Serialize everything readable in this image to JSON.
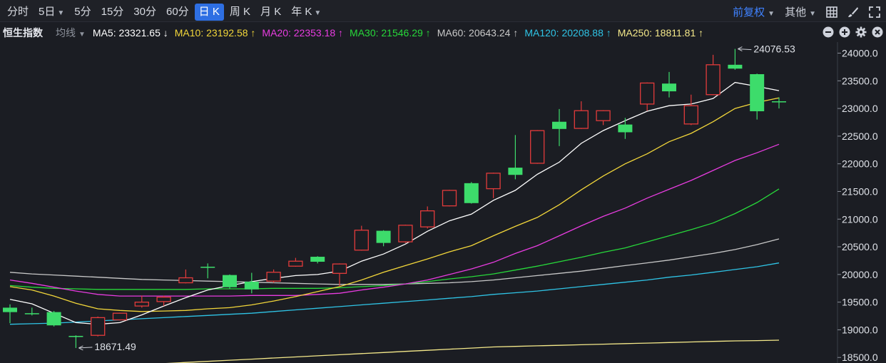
{
  "toolbar": {
    "tabs": [
      {
        "label": "分时",
        "caret": false,
        "active": false
      },
      {
        "label": "5日",
        "caret": true,
        "active": false
      },
      {
        "label": "5分",
        "caret": false,
        "active": false
      },
      {
        "label": "15分",
        "caret": false,
        "active": false
      },
      {
        "label": "30分",
        "caret": false,
        "active": false
      },
      {
        "label": "60分",
        "caret": false,
        "active": false
      },
      {
        "label": "日 K",
        "caret": false,
        "active": true
      },
      {
        "label": "周 K",
        "caret": false,
        "active": false
      },
      {
        "label": "月 K",
        "caret": false,
        "active": false
      },
      {
        "label": "年 K",
        "caret": true,
        "active": false
      }
    ],
    "adjust_label": "前复权",
    "other_label": "其他",
    "icons": [
      "grid-icon",
      "brush-icon",
      "expand-icon"
    ]
  },
  "ma_bar": {
    "title": "恒生指数",
    "selector": "均线",
    "items": [
      {
        "text": "MA5: 23321.65 ↓",
        "color": "#ffffff"
      },
      {
        "text": "MA10: 23192.58 ↑",
        "color": "#f2d63a"
      },
      {
        "text": "MA20: 22353.18 ↑",
        "color": "#e83ce0"
      },
      {
        "text": "MA30: 21546.29 ↑",
        "color": "#27d83a"
      },
      {
        "text": "MA60: 20643.24 ↑",
        "color": "#c8c8c8"
      },
      {
        "text": "MA120: 20208.88 ↑",
        "color": "#2fc4e6"
      },
      {
        "text": "MA250: 18811.81 ↑",
        "color": "#f5e98a"
      }
    ],
    "controls": [
      "minus-circle-icon",
      "plus-circle-icon",
      "gear-icon",
      "close-circle-icon"
    ]
  },
  "colors": {
    "up": "#e23b3b",
    "down": "#3ddc6b",
    "ma5": "#ffffff",
    "ma10": "#f2d63a",
    "ma20": "#e83ce0",
    "ma30": "#27d83a",
    "ma60": "#c8c8c8",
    "ma120": "#2fc4e6",
    "ma250": "#f5e98a"
  },
  "chart_data": {
    "type": "candlestick",
    "ylim": [
      18400,
      24200
    ],
    "ticks": [
      "24000.0",
      "23500.0",
      "23000.0",
      "22500.0",
      "22000.0",
      "21500.0",
      "21000.0",
      "20500.0",
      "20000.0",
      "19500.0",
      "19000.0",
      "18500.0"
    ],
    "tick_values": [
      24000,
      23500,
      23000,
      22500,
      22000,
      21500,
      21000,
      20500,
      20000,
      19500,
      19000,
      18500
    ],
    "candles": [
      {
        "o": 19400,
        "c": 19320,
        "h": 19460,
        "l": 19120
      },
      {
        "o": 19300,
        "c": 19295,
        "h": 19400,
        "l": 19260
      },
      {
        "o": 19320,
        "c": 19080,
        "h": 19340,
        "l": 19060
      },
      {
        "o": 18890,
        "c": 18870,
        "h": 18900,
        "l": 18671.49
      },
      {
        "o": 18900,
        "c": 19220,
        "h": 19240,
        "l": 18880
      },
      {
        "o": 19180,
        "c": 19300,
        "h": 19310,
        "l": 19170
      },
      {
        "o": 19430,
        "c": 19500,
        "h": 19620,
        "l": 19400
      },
      {
        "o": 19510,
        "c": 19590,
        "h": 19620,
        "l": 19430
      },
      {
        "o": 19850,
        "c": 19940,
        "h": 20090,
        "l": 19840
      },
      {
        "o": 20140,
        "c": 20130,
        "h": 20200,
        "l": 19930
      },
      {
        "o": 19990,
        "c": 19770,
        "h": 20000,
        "l": 19740
      },
      {
        "o": 19870,
        "c": 19730,
        "h": 20030,
        "l": 19660
      },
      {
        "o": 19880,
        "c": 20040,
        "h": 20090,
        "l": 19850
      },
      {
        "o": 20150,
        "c": 20240,
        "h": 20300,
        "l": 20140
      },
      {
        "o": 20320,
        "c": 20230,
        "h": 20330,
        "l": 20200
      },
      {
        "o": 20020,
        "c": 20190,
        "h": 20200,
        "l": 19790
      },
      {
        "o": 20440,
        "c": 20800,
        "h": 20880,
        "l": 20430
      },
      {
        "o": 20790,
        "c": 20570,
        "h": 20800,
        "l": 20510
      },
      {
        "o": 20590,
        "c": 20890,
        "h": 20900,
        "l": 20570
      },
      {
        "o": 20860,
        "c": 21150,
        "h": 21230,
        "l": 20830
      },
      {
        "o": 21240,
        "c": 21520,
        "h": 21530,
        "l": 21230
      },
      {
        "o": 21650,
        "c": 21290,
        "h": 21670,
        "l": 21280
      },
      {
        "o": 21550,
        "c": 21830,
        "h": 21840,
        "l": 21380
      },
      {
        "o": 21930,
        "c": 21800,
        "h": 22520,
        "l": 21720
      },
      {
        "o": 22010,
        "c": 22600,
        "h": 22610,
        "l": 22000
      },
      {
        "o": 22760,
        "c": 22630,
        "h": 22990,
        "l": 22320
      },
      {
        "o": 22640,
        "c": 22960,
        "h": 23130,
        "l": 22630
      },
      {
        "o": 22780,
        "c": 22960,
        "h": 22970,
        "l": 22700
      },
      {
        "o": 22710,
        "c": 22570,
        "h": 22830,
        "l": 22450
      },
      {
        "o": 23080,
        "c": 23460,
        "h": 23470,
        "l": 22960
      },
      {
        "o": 23450,
        "c": 23310,
        "h": 23660,
        "l": 23200
      },
      {
        "o": 22720,
        "c": 23050,
        "h": 23250,
        "l": 22700
      },
      {
        "o": 23250,
        "c": 23790,
        "h": 23970,
        "l": 23240
      },
      {
        "o": 23790,
        "c": 23720,
        "h": 24076.53,
        "l": 23700
      },
      {
        "o": 23620,
        "c": 22950,
        "h": 23630,
        "l": 22800
      },
      {
        "o": 23130,
        "c": 23120,
        "h": 23200,
        "l": 23000
      }
    ],
    "ma": {
      "ma5": [
        19550,
        19470,
        19300,
        19130,
        19100,
        19130,
        19270,
        19430,
        19580,
        19720,
        19800,
        19870,
        19930,
        19980,
        20000,
        20060,
        20240,
        20370,
        20550,
        20780,
        20970,
        21090,
        21340,
        21520,
        21810,
        22030,
        22370,
        22600,
        22780,
        22950,
        23050,
        23080,
        23180,
        23470,
        23400,
        23321.65
      ],
      "ma10": [
        19780,
        19720,
        19610,
        19480,
        19380,
        19350,
        19330,
        19340,
        19350,
        19380,
        19400,
        19450,
        19520,
        19600,
        19690,
        19780,
        19900,
        20040,
        20160,
        20280,
        20410,
        20520,
        20700,
        20870,
        21030,
        21260,
        21530,
        21780,
        22000,
        22180,
        22400,
        22550,
        22760,
        23000,
        23110,
        23192.58
      ],
      "ma20": [
        19900,
        19840,
        19770,
        19700,
        19640,
        19610,
        19610,
        19610,
        19610,
        19610,
        19610,
        19620,
        19620,
        19620,
        19640,
        19660,
        19720,
        19770,
        19830,
        19900,
        20000,
        20100,
        20220,
        20380,
        20520,
        20700,
        20880,
        21050,
        21200,
        21380,
        21540,
        21700,
        21880,
        22060,
        22200,
        22353.18
      ],
      "ma30": [
        19800,
        19770,
        19750,
        19740,
        19730,
        19730,
        19730,
        19730,
        19730,
        19740,
        19740,
        19740,
        19750,
        19750,
        19750,
        19760,
        19780,
        19800,
        19830,
        19870,
        19920,
        19960,
        20010,
        20080,
        20150,
        20230,
        20310,
        20400,
        20480,
        20590,
        20700,
        20810,
        20930,
        21100,
        21300,
        21546.29
      ],
      "ma60": [
        20040,
        20010,
        19990,
        19970,
        19950,
        19930,
        19910,
        19900,
        19890,
        19880,
        19870,
        19860,
        19850,
        19840,
        19830,
        19820,
        19820,
        19820,
        19830,
        19840,
        19850,
        19870,
        19900,
        19940,
        19980,
        20020,
        20060,
        20110,
        20160,
        20210,
        20260,
        20320,
        20380,
        20450,
        20540,
        20643.24
      ],
      "ma120": [
        19100,
        19110,
        19120,
        19140,
        19160,
        19180,
        19200,
        19220,
        19240,
        19260,
        19280,
        19300,
        19330,
        19360,
        19390,
        19420,
        19450,
        19480,
        19510,
        19540,
        19570,
        19600,
        19640,
        19670,
        19700,
        19740,
        19780,
        19820,
        19860,
        19900,
        19950,
        19990,
        20040,
        20090,
        20140,
        20208.88
      ],
      "ma250": [
        18250,
        18270,
        18290,
        18310,
        18330,
        18350,
        18370,
        18390,
        18410,
        18430,
        18450,
        18470,
        18490,
        18510,
        18530,
        18550,
        18570,
        18590,
        18610,
        18630,
        18650,
        18670,
        18690,
        18700,
        18710,
        18720,
        18730,
        18740,
        18750,
        18760,
        18770,
        18780,
        18790,
        18800,
        18805,
        18811.81
      ]
    },
    "annotations": [
      {
        "label": "24076.53",
        "index": 33,
        "value": 24076.53,
        "side": "right"
      },
      {
        "label": "18671.49",
        "index": 3,
        "value": 18671.49,
        "side": "right"
      }
    ]
  }
}
